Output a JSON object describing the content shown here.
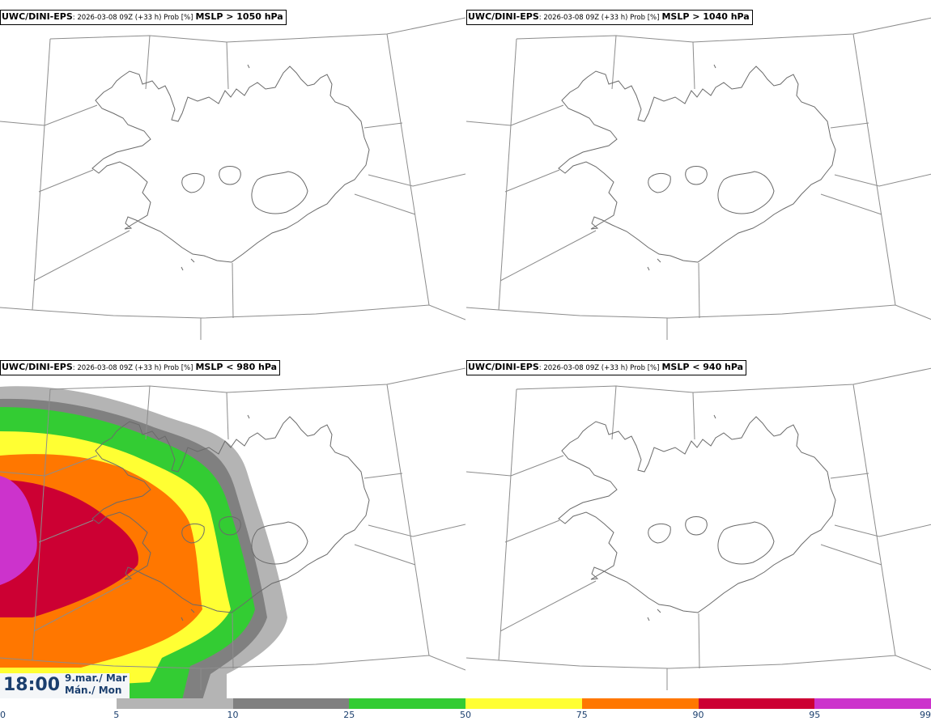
{
  "panels": [
    {
      "model": "UWC/DINI-EPS",
      "info": ": 2026-03-08 09Z (+33 h) Prob [%]",
      "field": "MSLP > 1050 hPa"
    },
    {
      "model": "UWC/DINI-EPS",
      "info": ": 2026-03-08 09Z (+33 h) Prob [%]",
      "field": "MSLP > 1040 hPa"
    },
    {
      "model": "UWC/DINI-EPS",
      "info": ": 2026-03-08 09Z (+33 h) Prob [%]",
      "field": "MSLP < 980 hPa"
    },
    {
      "model": "UWC/DINI-EPS",
      "info": ": 2026-03-08 09Z (+33 h) Prob [%]",
      "field": "MSLP < 940 hPa"
    }
  ],
  "valid_time": {
    "time": "18:00",
    "date_line1": "9.mar./ Mar",
    "date_line2": "Mán./ Mon"
  },
  "colorbar": {
    "ticks": [
      "0",
      "5",
      "10",
      "25",
      "50",
      "75",
      "90",
      "95",
      "99"
    ],
    "bins": [
      {
        "color": "#ffffff"
      },
      {
        "color": "#b4b4b4"
      },
      {
        "color": "#808080"
      },
      {
        "color": "#33cc33"
      },
      {
        "color": "#ffff33"
      },
      {
        "color": "#ff7700"
      },
      {
        "color": "#cc0033"
      },
      {
        "color": "#cc33cc"
      }
    ]
  }
}
